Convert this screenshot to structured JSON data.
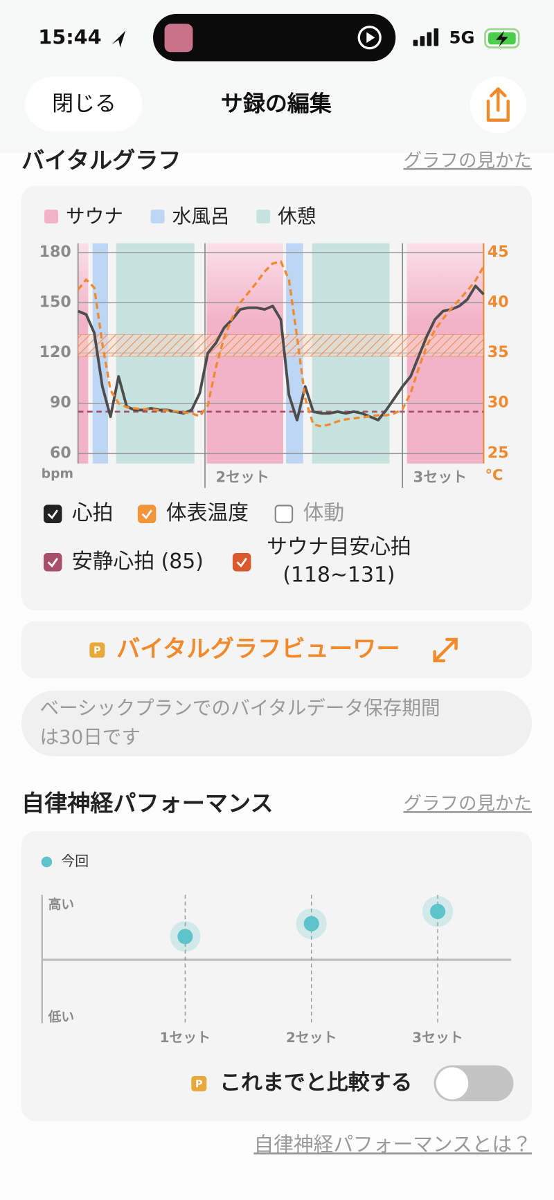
{
  "status_bar": {
    "time": "15:44",
    "network": "5G"
  },
  "header": {
    "close": "閉じる",
    "title": "サ録の編集"
  },
  "vital_section": {
    "title": "バイタルグラフ",
    "help_link": "グラフの見かた",
    "viewer_button": "バイタルグラフビューワー",
    "premium_badge": "P",
    "notice": [
      "ベーシックプランでのバイタルデータ保存期間",
      "は30日です"
    ]
  },
  "performance_section": {
    "title": "自律神経パフォーマンス",
    "help_link": "グラフの見かた",
    "premium_badge": "P",
    "compare_label": "これまでと比較する",
    "compare_on": false,
    "about_link": "自律神経パフォーマンスとは？"
  },
  "chart_data": [
    {
      "type": "line",
      "zones": [
        {
          "name": "サウナ",
          "color": "#f2b3c8",
          "spans": [
            [
              0,
              2.5
            ],
            [
              31.7,
              50.6
            ],
            [
              81.1,
              100
            ]
          ]
        },
        {
          "name": "水風呂",
          "color": "#bcd6f4",
          "spans": [
            [
              3.6,
              7.4
            ],
            [
              51.3,
              55.5
            ]
          ]
        },
        {
          "name": "休憩",
          "color": "#c6e3df",
          "spans": [
            [
              9.4,
              28.7
            ],
            [
              57.7,
              76.8
            ]
          ]
        }
      ],
      "x": [
        0,
        2,
        4,
        6,
        8,
        10,
        12,
        14,
        16,
        18,
        20,
        22,
        24,
        26,
        28,
        30,
        32,
        34,
        36,
        38,
        40,
        42,
        44,
        46,
        48,
        50,
        52,
        54,
        56,
        58,
        60,
        62,
        64,
        66,
        68,
        70,
        72,
        74,
        76,
        78,
        80,
        82,
        84,
        86,
        88,
        90,
        92,
        94,
        96,
        98,
        100
      ],
      "xlim": [
        0,
        100
      ],
      "xticks": [
        {
          "value": 31.3,
          "label": "2セット"
        },
        {
          "value": 80,
          "label": "3セット"
        }
      ],
      "series": [
        {
          "color": "#4d4d4d",
          "values": [
            145,
            143,
            132,
            100,
            82,
            106,
            88,
            86,
            86,
            87,
            86,
            86,
            85,
            84,
            86,
            96,
            120,
            126,
            135,
            140,
            146,
            147,
            147,
            146,
            148,
            140,
            95,
            80,
            100,
            85,
            84,
            84,
            85,
            84,
            85,
            84,
            82,
            80,
            86,
            93,
            100,
            106,
            118,
            130,
            140,
            145,
            146,
            148,
            152,
            160,
            155
          ]
        },
        {
          "color": "#f08a30",
          "axis": "y2",
          "values": [
            41.3,
            42.3,
            41.5,
            35.9,
            31.3,
            30,
            29.6,
            29.5,
            29.4,
            29.4,
            29.3,
            29.3,
            29.2,
            29.1,
            29,
            28.7,
            29.8,
            33.6,
            36.5,
            38.5,
            40,
            41,
            42,
            43.1,
            43.9,
            44.1,
            42.3,
            36.6,
            30.5,
            27.9,
            27.7,
            27.9,
            28.2,
            28.4,
            28.5,
            28.6,
            28.7,
            28.8,
            28.8,
            29,
            29.4,
            31,
            33.5,
            35.7,
            37.3,
            38.4,
            39.4,
            40.3,
            41.2,
            42.2,
            43.6
          ]
        }
      ],
      "ylim": [
        60,
        180
      ],
      "yticks": [
        60,
        90,
        120,
        150,
        180
      ],
      "y2lim": [
        25,
        45
      ],
      "y2ticks": [
        25,
        30,
        35,
        40,
        45
      ],
      "ylabel": "bpm",
      "y2label": "°C",
      "grid": true,
      "rest_hr": 85,
      "rest_hr_color": "#a8506a",
      "target_hr_band": [
        118,
        131
      ],
      "target_color": "#e8703a",
      "toggles": [
        {
          "label": [
            "心拍"
          ],
          "checked": true,
          "color": "#222222"
        },
        {
          "label": [
            "体表温度"
          ],
          "checked": true,
          "color": "#f0953a"
        },
        {
          "label": [
            "体動"
          ],
          "checked": false,
          "color": "#8a8a8a"
        },
        {
          "label": [
            "安静心拍 (85)"
          ],
          "checked": true,
          "color": "#a8506a"
        },
        {
          "label": [
            "サウナ目安心拍",
            "(118~131)"
          ],
          "checked": true,
          "color": "#d9582e"
        }
      ]
    },
    {
      "type": "scatter",
      "categories": [
        "1セット",
        "2セット",
        "3セット"
      ],
      "series": [
        {
          "name": "今回",
          "color": "#5bc3c9",
          "values": [
            0.38,
            0.59,
            0.79
          ]
        }
      ],
      "ylim": [
        -1,
        1
      ],
      "yticks": [
        {
          "value": 1,
          "label": "高い"
        },
        {
          "value": -1,
          "label": "低い"
        }
      ]
    }
  ]
}
